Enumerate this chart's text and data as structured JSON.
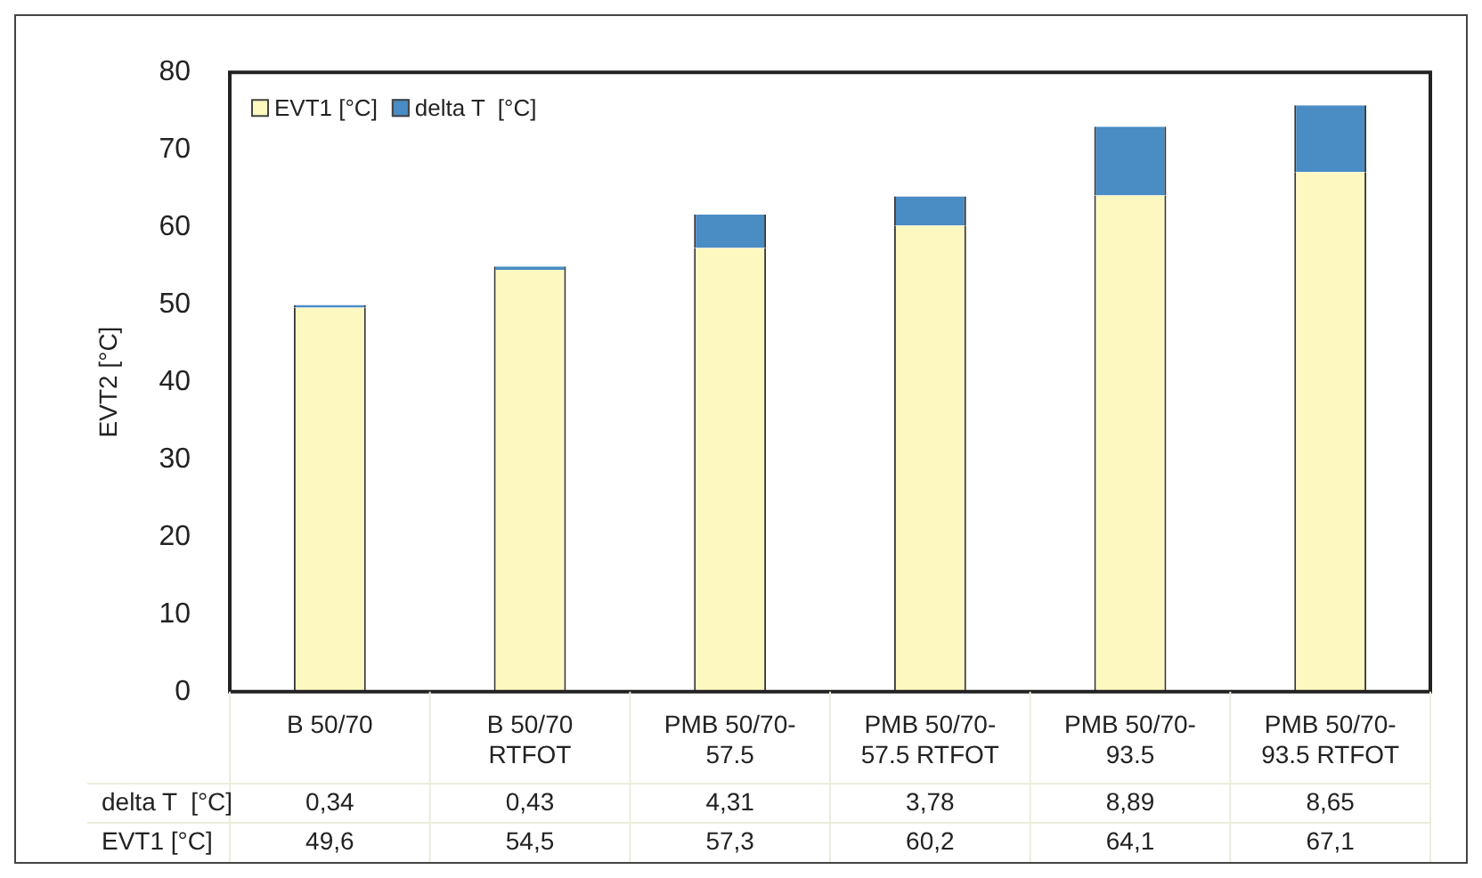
{
  "chart_data": {
    "type": "bar",
    "stacked": true,
    "ylabel": "EVT2 [°C]",
    "categories": [
      "B 50/70",
      "B 50/70 RTFOT",
      "PMB 50/70-57.5",
      "PMB 50/70-57.5 RTFOT",
      "PMB 50/70-93.5",
      "PMB 50/70-93.5 RTFOT"
    ],
    "series": [
      {
        "name": "EVT1 [°C]",
        "color": "#fdf8c0",
        "values": [
          49.6,
          54.5,
          57.3,
          60.2,
          64.1,
          67.1
        ],
        "value_labels": [
          "49,6",
          "54,5",
          "57,3",
          "60,2",
          "64,1",
          "67,1"
        ]
      },
      {
        "name": "delta T  [°C]",
        "color": "#4a8cc4",
        "values": [
          0.34,
          0.43,
          4.31,
          3.78,
          8.89,
          8.65
        ],
        "value_labels": [
          "0,34",
          "0,43",
          "4,31",
          "3,78",
          "8,89",
          "8,65"
        ]
      }
    ],
    "ylim": [
      0,
      80
    ],
    "yticks": [
      0,
      10,
      20,
      30,
      40,
      50,
      60,
      70,
      80
    ],
    "grid": false,
    "legend": "top left"
  }
}
